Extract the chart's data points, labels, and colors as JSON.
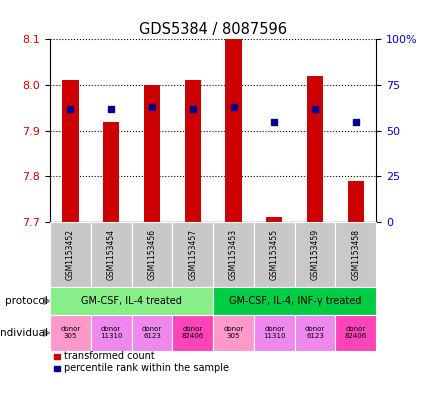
{
  "title": "GDS5384 / 8087596",
  "samples": [
    "GSM1153452",
    "GSM1153454",
    "GSM1153456",
    "GSM1153457",
    "GSM1153453",
    "GSM1153455",
    "GSM1153459",
    "GSM1153458"
  ],
  "red_values": [
    8.01,
    7.92,
    8.0,
    8.01,
    8.1,
    7.71,
    8.02,
    7.79
  ],
  "blue_values_pct": [
    62,
    62,
    63,
    62,
    63,
    55,
    62,
    55
  ],
  "ylim": [
    7.7,
    8.1
  ],
  "yticks": [
    7.7,
    7.8,
    7.9,
    8.0,
    8.1
  ],
  "right_yticks": [
    0,
    25,
    50,
    75,
    100
  ],
  "right_ylim": [
    0,
    100
  ],
  "protocol_groups": [
    {
      "label": "GM-CSF, IL-4 treated",
      "start": 0,
      "end": 4,
      "color": "#88EE88"
    },
    {
      "label": "GM-CSF, IL-4, INF-γ treated",
      "start": 4,
      "end": 8,
      "color": "#00CC44"
    }
  ],
  "indiv_labels": [
    "donor\n305",
    "donor\n11310",
    "donor\n6123",
    "donor\n82406",
    "donor\n305",
    "donor\n11310",
    "donor\n6123",
    "donor\n82406"
  ],
  "indiv_colors": [
    "#FF99CC",
    "#EE88EE",
    "#EE88EE",
    "#FF44BB",
    "#FF99CC",
    "#EE88EE",
    "#EE88EE",
    "#FF44BB"
  ],
  "bar_color": "#CC0000",
  "dot_color": "#00008B",
  "bar_bottom": 7.7,
  "bar_width": 0.4,
  "left_label_color": "#CC0000",
  "right_label_color": "#0000CC",
  "sample_bg_color": "#C8C8C8",
  "legend_red": "transformed count",
  "legend_blue": "percentile rank within the sample"
}
